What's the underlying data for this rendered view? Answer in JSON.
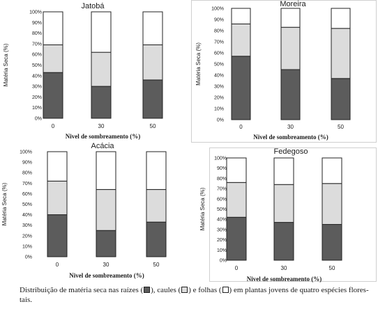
{
  "colors": {
    "raiz": "#5c5c5c",
    "caule": "#dcdcdc",
    "folha": "#ffffff",
    "outline": "#222222"
  },
  "chart_data": [
    {
      "type": "bar",
      "stacked": true,
      "title": "Jatobá",
      "xlabel": "Nivel de sombreamento (%)",
      "ylabel": "Matéria Seca (%)",
      "categories": [
        "0",
        "30",
        "50"
      ],
      "yticks": [
        "0%",
        "10%",
        "20%",
        "30%",
        "40%",
        "50%",
        "60%",
        "70%",
        "80%",
        "90%",
        "100%"
      ],
      "ylim": [
        0,
        100
      ],
      "series": [
        {
          "key": "raiz",
          "values": [
            43,
            30,
            36
          ]
        },
        {
          "key": "caule",
          "values": [
            26,
            32,
            33
          ]
        },
        {
          "key": "folha",
          "values": [
            31,
            38,
            31
          ]
        }
      ]
    },
    {
      "type": "bar",
      "stacked": true,
      "title": "Moreira",
      "xlabel": "Nivel de sombreamento (%)",
      "ylabel": "Matéria Seca (%)",
      "categories": [
        "0",
        "30",
        "50"
      ],
      "yticks": [
        "0%",
        "10%",
        "20%",
        "30%",
        "40%",
        "50%",
        "60%",
        "70%",
        "80%",
        "90%",
        "100%"
      ],
      "ylim": [
        0,
        100
      ],
      "series": [
        {
          "key": "raiz",
          "values": [
            57,
            45,
            37
          ]
        },
        {
          "key": "caule",
          "values": [
            29,
            38,
            45
          ]
        },
        {
          "key": "folha",
          "values": [
            14,
            17,
            18
          ]
        }
      ]
    },
    {
      "type": "bar",
      "stacked": true,
      "title": "Acácia",
      "xlabel": "Nivel de sombreamento (%)",
      "ylabel": "Matéria Seca (%)",
      "categories": [
        "0",
        "30",
        "50"
      ],
      "yticks": [
        "0%",
        "10%",
        "20%",
        "30%",
        "40%",
        "50%",
        "60%",
        "70%",
        "80%",
        "90%",
        "100%"
      ],
      "ylim": [
        0,
        100
      ],
      "series": [
        {
          "key": "raiz",
          "values": [
            40,
            25,
            33
          ]
        },
        {
          "key": "caule",
          "values": [
            32,
            39,
            31
          ]
        },
        {
          "key": "folha",
          "values": [
            28,
            36,
            36
          ]
        }
      ]
    },
    {
      "type": "bar",
      "stacked": true,
      "title": "Fedegoso",
      "xlabel": "Nivel de sombreamento (%)",
      "ylabel": "Matéria Seca (%)",
      "categories": [
        "0",
        "30",
        "50"
      ],
      "yticks": [
        "0%",
        "10%",
        "20%",
        "30%",
        "40%",
        "50%",
        "60%",
        "70%",
        "80%",
        "90%",
        "100%"
      ],
      "ylim": [
        0,
        100
      ],
      "series": [
        {
          "key": "raiz",
          "values": [
            42,
            37,
            35
          ]
        },
        {
          "key": "caule",
          "values": [
            34,
            37,
            40
          ]
        },
        {
          "key": "folha",
          "values": [
            24,
            26,
            25
          ]
        }
      ]
    }
  ],
  "caption": {
    "part1": "Distribuição de matéria seca nas raízes (",
    "part2": "), caules (",
    "part3": ") e folhas (",
    "part4": ") em plantas jovens de quatro espécies flores-",
    "line2": "tais."
  }
}
